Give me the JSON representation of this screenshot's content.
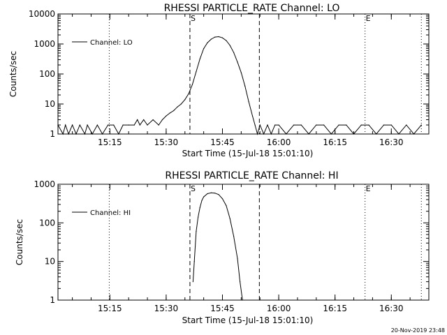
{
  "footer": "20-Nov-2019 23:48",
  "chart_data": [
    {
      "type": "line",
      "title": "RHESSI PARTICLE_RATE Channel: LO",
      "xlabel": "Start Time (15-Jul-18 15:01:10)",
      "ylabel": "Counts/sec",
      "yscale": "log",
      "ylim": [
        1,
        10000
      ],
      "yticks": [
        {
          "value": 1,
          "label": "1"
        },
        {
          "value": 10,
          "label": "10"
        },
        {
          "value": 100,
          "label": "100"
        },
        {
          "value": 1000,
          "label": "1000"
        },
        {
          "value": 10000,
          "label": "10000"
        }
      ],
      "xlim": [
        "15:01:10",
        "16:40:00"
      ],
      "xticks": [
        "15:15",
        "15:30",
        "15:45",
        "16:00",
        "16:15",
        "16:30"
      ],
      "grid": false,
      "legend": {
        "position": "top-left",
        "entries": [
          "Channel: LO"
        ]
      },
      "markers": [
        {
          "label": "S",
          "time": "15:36:20",
          "style": "dashed"
        },
        {
          "label": "",
          "time": "15:54:50",
          "style": "dashed"
        },
        {
          "label": "E",
          "time": "16:23:00",
          "style": "dotted"
        },
        {
          "label": "",
          "time": "15:14:50",
          "style": "dotted"
        },
        {
          "label": "",
          "time": "16:38:00",
          "style": "dotted"
        }
      ],
      "series": [
        {
          "name": "Channel: LO",
          "x": [
            "15:01:10",
            "15:02:30",
            "15:03:10",
            "15:04:00",
            "15:05:00",
            "15:06:00",
            "15:07:00",
            "15:08:20",
            "15:09:00",
            "15:10:20",
            "15:11:40",
            "15:13:00",
            "15:14:30",
            "15:16:00",
            "15:17:20",
            "15:18:30",
            "15:20:00",
            "15:21:30",
            "15:22:20",
            "15:23:00",
            "15:24:00",
            "15:25:00",
            "15:26:30",
            "15:28:00",
            "15:29:00",
            "15:30:00",
            "15:31:00",
            "15:32:00",
            "15:33:00",
            "15:34:00",
            "15:35:00",
            "15:36:00",
            "15:37:00",
            "15:38:00",
            "15:39:00",
            "15:40:00",
            "15:41:00",
            "15:42:00",
            "15:43:00",
            "15:44:00",
            "15:45:00",
            "15:46:00",
            "15:47:00",
            "15:48:00",
            "15:49:00",
            "15:50:00",
            "15:51:00",
            "15:52:00",
            "15:53:00",
            "15:53:40",
            "15:54:20",
            "15:55:00",
            "15:56:00",
            "15:57:00",
            "15:58:00",
            "15:59:00",
            "16:00:00",
            "16:02:00",
            "16:04:00",
            "16:06:00",
            "16:08:00",
            "16:10:00",
            "16:12:00",
            "16:14:00",
            "16:16:00",
            "16:18:00",
            "16:20:00",
            "16:22:00",
            "16:24:00",
            "16:26:00",
            "16:28:00",
            "16:30:00",
            "16:32:00",
            "16:34:00",
            "16:36:00",
            "16:38:00"
          ],
          "values": [
            2,
            1,
            2,
            1,
            2,
            1,
            2,
            1,
            2,
            1,
            2,
            1,
            2,
            2,
            1,
            2,
            2,
            2,
            3,
            2,
            3,
            2,
            3,
            2,
            3,
            4,
            5,
            6,
            8,
            10,
            14,
            22,
            45,
            120,
            320,
            700,
            1100,
            1450,
            1700,
            1750,
            1600,
            1300,
            900,
            520,
            250,
            110,
            40,
            12,
            4,
            2,
            1,
            2,
            1,
            2,
            1,
            2,
            2,
            1,
            2,
            2,
            1,
            2,
            2,
            1,
            2,
            2,
            1,
            2,
            2,
            1,
            2,
            2,
            1,
            2,
            1,
            2
          ]
        }
      ]
    },
    {
      "type": "line",
      "title": "RHESSI PARTICLE_RATE Channel: HI",
      "xlabel": "Start Time (15-Jul-18 15:01:10)",
      "ylabel": "Counts/sec",
      "yscale": "log",
      "ylim": [
        1,
        1000
      ],
      "yticks": [
        {
          "value": 1,
          "label": "1"
        },
        {
          "value": 10,
          "label": "10"
        },
        {
          "value": 100,
          "label": "100"
        },
        {
          "value": 1000,
          "label": "1000"
        }
      ],
      "xlim": [
        "15:01:10",
        "16:40:00"
      ],
      "xticks": [
        "15:15",
        "15:30",
        "15:45",
        "16:00",
        "16:15",
        "16:30"
      ],
      "grid": false,
      "legend": {
        "position": "top-left",
        "entries": [
          "Channel: HI"
        ]
      },
      "markers": [
        {
          "label": "S",
          "time": "15:36:20",
          "style": "dashed"
        },
        {
          "label": "",
          "time": "15:54:50",
          "style": "dashed"
        },
        {
          "label": "E",
          "time": "16:23:00",
          "style": "dotted"
        },
        {
          "label": "",
          "time": "15:14:50",
          "style": "dotted"
        },
        {
          "label": "",
          "time": "16:38:00",
          "style": "dotted"
        }
      ],
      "series": [
        {
          "name": "Channel: HI",
          "x": [
            "15:37:10",
            "15:37:30",
            "15:38:00",
            "15:38:30",
            "15:39:00",
            "15:39:30",
            "15:40:00",
            "15:41:00",
            "15:42:00",
            "15:43:00",
            "15:44:00",
            "15:45:00",
            "15:46:00",
            "15:47:00",
            "15:48:00",
            "15:49:00",
            "15:49:40",
            "15:50:20"
          ],
          "values": [
            3,
            10,
            60,
            140,
            250,
            380,
            470,
            570,
            600,
            590,
            540,
            420,
            280,
            130,
            45,
            12,
            3,
            1
          ]
        }
      ]
    }
  ]
}
